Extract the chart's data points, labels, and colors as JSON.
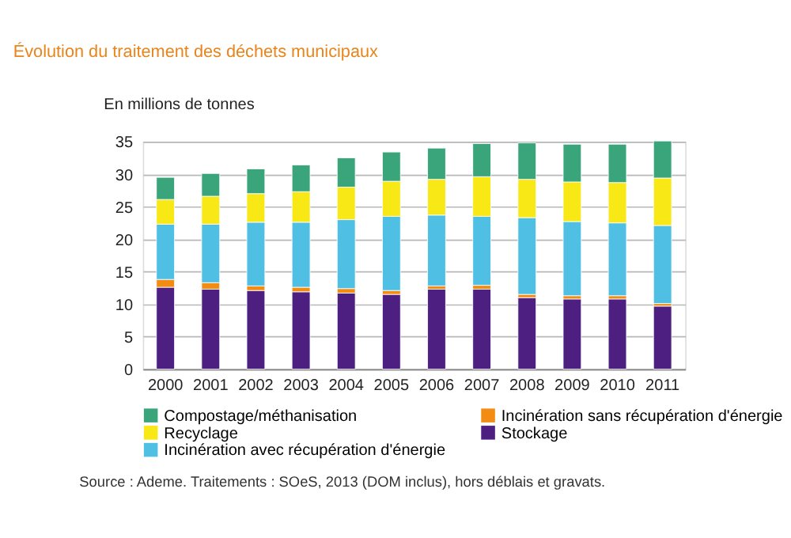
{
  "chart_data": {
    "type": "bar",
    "stacked": true,
    "title": "Évolution du traitement des déchets municipaux",
    "ylabel": "En millions de tonnes",
    "categories": [
      "2000",
      "2001",
      "2002",
      "2003",
      "2004",
      "2005",
      "2006",
      "2007",
      "2008",
      "2009",
      "2010",
      "2011"
    ],
    "series": [
      {
        "name": "Stockage",
        "color": "#4d1f80",
        "values": [
          12.6,
          12.3,
          12.1,
          11.9,
          11.7,
          11.5,
          12.3,
          12.3,
          11.0,
          10.8,
          10.8,
          9.7
        ]
      },
      {
        "name": "Incinération sans récupération d'énergie",
        "color": "#f28c12",
        "values": [
          1.2,
          1.0,
          0.7,
          0.7,
          0.7,
          0.6,
          0.5,
          0.6,
          0.5,
          0.5,
          0.5,
          0.4
        ]
      },
      {
        "name": "Incinération avec récupération d'énergie",
        "color": "#4fc0e4",
        "values": [
          8.5,
          9.0,
          9.8,
          10.0,
          10.6,
          11.4,
          10.9,
          10.6,
          11.8,
          11.4,
          11.2,
          12.0
        ]
      },
      {
        "name": "Recyclage",
        "color": "#f7e816",
        "values": [
          3.8,
          4.3,
          4.4,
          4.7,
          5.0,
          5.4,
          5.5,
          6.1,
          5.9,
          6.1,
          6.2,
          7.3
        ]
      },
      {
        "name": "Compostage/méthanisation",
        "color": "#3aa57a",
        "values": [
          3.4,
          3.5,
          3.8,
          4.1,
          4.5,
          4.5,
          4.8,
          5.1,
          5.6,
          5.8,
          5.9,
          5.7
        ]
      }
    ],
    "ylim": [
      0,
      35
    ],
    "yticks": [
      0,
      5,
      10,
      15,
      20,
      25,
      30,
      35
    ],
    "grid": "y",
    "legend": "bottom",
    "annotations": [
      "Source : Ademe. Traitements : SOeS, 2013 (DOM inclus), hors déblais et gravats."
    ]
  }
}
